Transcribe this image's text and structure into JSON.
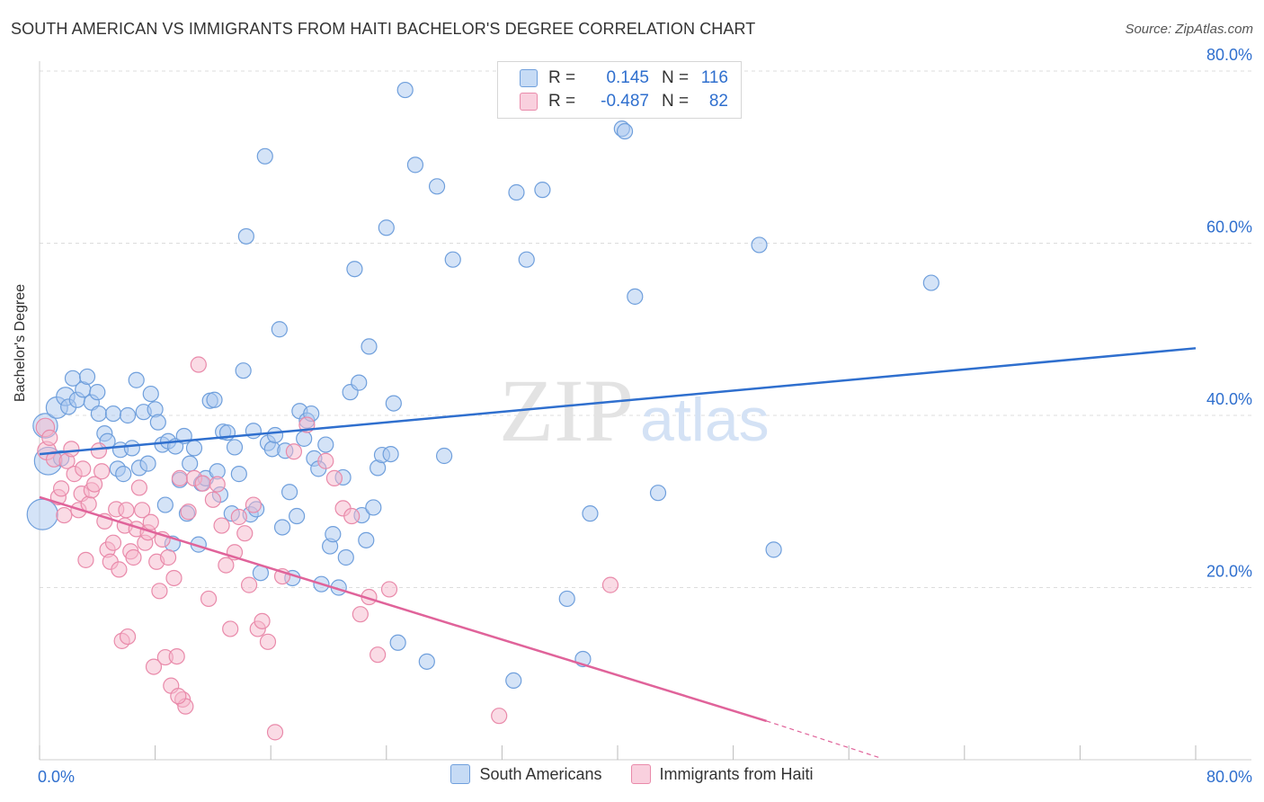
{
  "header": {
    "title": "SOUTH AMERICAN VS IMMIGRANTS FROM HAITI BACHELOR'S DEGREE CORRELATION CHART",
    "source": "Source: ZipAtlas.com"
  },
  "watermark": {
    "zip": "ZIP",
    "atlas": "atlas"
  },
  "legend_top": {
    "rows": [
      {
        "r_label": "R =",
        "r_value": "0.145",
        "n_label": "N =",
        "n_value": "116"
      },
      {
        "r_label": "R =",
        "r_value": "-0.487",
        "n_label": "N =",
        "n_value": "82"
      }
    ]
  },
  "legend_bottom": {
    "items": [
      {
        "label": "South Americans"
      },
      {
        "label": "Immigrants from Haiti"
      }
    ]
  },
  "colors": {
    "blue_fill": "#a9c8f0",
    "blue_stroke": "#6f9fdc",
    "blue_line": "#2f6fce",
    "pink_fill": "#f5b8cc",
    "pink_stroke": "#e98aaa",
    "pink_line": "#e0639a",
    "axis_label": "#2f6fce",
    "grid": "#dcdcdc"
  },
  "chart_data": {
    "type": "scatter",
    "title": "SOUTH AMERICAN VS IMMIGRANTS FROM HAITI BACHELOR'S DEGREE CORRELATION CHART",
    "xlabel": "",
    "ylabel": "Bachelor's Degree",
    "xlim": [
      0,
      80
    ],
    "ylim": [
      0,
      80
    ],
    "x_tick_labels": [
      "0.0%",
      "80.0%"
    ],
    "y_tick_labels": [
      "20.0%",
      "40.0%",
      "60.0%",
      "80.0%"
    ],
    "y_ticks": [
      20,
      40,
      60,
      80
    ],
    "grid": true,
    "legend": "bottom",
    "series": [
      {
        "name": "South Americans",
        "r": 0.145,
        "n": 116,
        "trend": {
          "x": [
            0,
            80
          ],
          "y": [
            35.5,
            47.8
          ]
        },
        "points": [
          [
            0.4,
            38.8,
            1.6
          ],
          [
            0.6,
            34.7,
            1.8
          ],
          [
            0.2,
            28.5,
            2.0
          ],
          [
            1.2,
            40.9,
            1.4
          ],
          [
            1.5,
            35.0,
            1.0
          ],
          [
            1.8,
            42.2,
            1.2
          ],
          [
            2.0,
            41.0,
            1.0
          ],
          [
            2.3,
            44.3,
            1.0
          ],
          [
            2.6,
            41.8,
            1.0
          ],
          [
            3.0,
            43.0,
            1.0
          ],
          [
            3.3,
            44.5,
            1.0
          ],
          [
            3.6,
            41.5,
            1.0
          ],
          [
            4.0,
            42.7,
            1.0
          ],
          [
            4.1,
            40.2,
            1.0
          ],
          [
            4.5,
            37.9,
            1.0
          ],
          [
            4.7,
            37.0,
            1.0
          ],
          [
            5.1,
            40.2,
            1.0
          ],
          [
            5.4,
            33.8,
            1.0
          ],
          [
            5.6,
            36.0,
            1.0
          ],
          [
            5.8,
            33.2,
            1.0
          ],
          [
            6.1,
            40.0,
            1.0
          ],
          [
            6.4,
            36.2,
            1.0
          ],
          [
            6.7,
            44.1,
            1.0
          ],
          [
            6.9,
            33.9,
            1.0
          ],
          [
            7.2,
            40.4,
            1.0
          ],
          [
            7.5,
            34.4,
            1.0
          ],
          [
            7.7,
            42.5,
            1.0
          ],
          [
            8.0,
            40.7,
            1.0
          ],
          [
            8.2,
            39.2,
            1.0
          ],
          [
            8.5,
            36.6,
            1.0
          ],
          [
            8.7,
            29.6,
            1.0
          ],
          [
            8.9,
            37.0,
            1.0
          ],
          [
            9.2,
            25.1,
            1.0
          ],
          [
            9.4,
            36.4,
            1.0
          ],
          [
            9.7,
            32.5,
            1.0
          ],
          [
            10.0,
            37.6,
            1.0
          ],
          [
            10.2,
            28.6,
            1.0
          ],
          [
            10.4,
            34.4,
            1.0
          ],
          [
            10.7,
            36.2,
            1.0
          ],
          [
            11.0,
            25.0,
            1.0
          ],
          [
            11.2,
            32.1,
            1.0
          ],
          [
            11.5,
            32.7,
            1.0
          ],
          [
            11.8,
            41.7,
            1.0
          ],
          [
            12.1,
            41.8,
            1.0
          ],
          [
            12.3,
            33.5,
            1.0
          ],
          [
            12.5,
            30.8,
            1.0
          ],
          [
            12.7,
            38.1,
            1.0
          ],
          [
            13.0,
            38.0,
            1.0
          ],
          [
            13.3,
            28.6,
            1.0
          ],
          [
            13.5,
            36.3,
            1.0
          ],
          [
            13.8,
            33.2,
            1.0
          ],
          [
            14.1,
            45.2,
            1.0
          ],
          [
            14.3,
            60.8,
            1.0
          ],
          [
            14.6,
            28.5,
            1.0
          ],
          [
            14.8,
            38.2,
            1.0
          ],
          [
            15.0,
            29.1,
            1.0
          ],
          [
            15.3,
            21.7,
            1.0
          ],
          [
            15.6,
            70.1,
            1.0
          ],
          [
            15.8,
            36.8,
            1.0
          ],
          [
            16.1,
            36.1,
            1.0
          ],
          [
            16.3,
            37.7,
            1.0
          ],
          [
            16.6,
            50.0,
            1.0
          ],
          [
            16.8,
            27.0,
            1.0
          ],
          [
            17.0,
            35.9,
            1.0
          ],
          [
            17.3,
            31.1,
            1.0
          ],
          [
            17.5,
            21.1,
            1.0
          ],
          [
            17.8,
            28.3,
            1.0
          ],
          [
            18.0,
            40.5,
            1.0
          ],
          [
            18.3,
            37.3,
            1.0
          ],
          [
            18.5,
            39.4,
            1.0
          ],
          [
            18.8,
            40.2,
            1.0
          ],
          [
            19.0,
            35.0,
            1.0
          ],
          [
            19.3,
            33.8,
            1.0
          ],
          [
            19.5,
            20.4,
            1.0
          ],
          [
            19.8,
            36.6,
            1.0
          ],
          [
            20.1,
            24.8,
            1.0
          ],
          [
            20.3,
            26.2,
            1.0
          ],
          [
            20.7,
            20.0,
            1.0
          ],
          [
            21.0,
            32.8,
            1.0
          ],
          [
            21.2,
            23.5,
            1.0
          ],
          [
            21.5,
            42.7,
            1.0
          ],
          [
            21.8,
            57.0,
            1.0
          ],
          [
            22.1,
            43.8,
            1.0
          ],
          [
            22.3,
            28.4,
            1.0
          ],
          [
            22.6,
            25.5,
            1.0
          ],
          [
            22.8,
            48.0,
            1.0
          ],
          [
            23.1,
            29.3,
            1.0
          ],
          [
            23.4,
            33.9,
            1.0
          ],
          [
            23.7,
            35.4,
            1.0
          ],
          [
            24.0,
            61.8,
            1.0
          ],
          [
            24.3,
            35.5,
            1.0
          ],
          [
            24.5,
            41.4,
            1.0
          ],
          [
            24.8,
            13.6,
            1.0
          ],
          [
            25.3,
            77.8,
            1.0
          ],
          [
            26.0,
            69.1,
            1.0
          ],
          [
            26.8,
            11.4,
            1.0
          ],
          [
            27.5,
            66.6,
            1.0
          ],
          [
            28.0,
            35.3,
            1.0
          ],
          [
            28.6,
            58.1,
            1.0
          ],
          [
            32.8,
            9.2,
            1.0
          ],
          [
            33.0,
            65.9,
            1.0
          ],
          [
            33.7,
            58.1,
            1.0
          ],
          [
            34.8,
            66.2,
            1.0
          ],
          [
            36.5,
            18.7,
            1.0
          ],
          [
            37.6,
            11.7,
            1.0
          ],
          [
            38.1,
            28.6,
            1.0
          ],
          [
            40.3,
            73.3,
            1.0
          ],
          [
            40.5,
            73.0,
            1.0
          ],
          [
            41.2,
            53.8,
            1.0
          ],
          [
            42.8,
            31.0,
            1.0
          ],
          [
            49.8,
            59.8,
            1.0
          ],
          [
            50.8,
            24.4,
            1.0
          ],
          [
            61.7,
            55.4,
            1.0
          ]
        ]
      },
      {
        "name": "Immigrants from Haiti",
        "r": -0.487,
        "n": 82,
        "trend": {
          "x": [
            0,
            50.3
          ],
          "y": [
            30.5,
            4.5
          ]
        },
        "trend_dashed": {
          "x": [
            50.3,
            58.2
          ],
          "y": [
            4.5,
            0.2
          ]
        },
        "points": [
          [
            0.4,
            38.6,
            1.2
          ],
          [
            0.5,
            35.9,
            1.2
          ],
          [
            0.7,
            37.4,
            1.0
          ],
          [
            1.0,
            34.9,
            1.0
          ],
          [
            1.3,
            30.5,
            1.0
          ],
          [
            1.5,
            31.5,
            1.0
          ],
          [
            1.7,
            28.4,
            1.0
          ],
          [
            1.9,
            34.7,
            1.0
          ],
          [
            2.2,
            36.1,
            1.0
          ],
          [
            2.4,
            33.2,
            1.0
          ],
          [
            2.7,
            29.0,
            1.0
          ],
          [
            2.9,
            30.9,
            1.0
          ],
          [
            3.2,
            23.2,
            1.0
          ],
          [
            3.4,
            29.7,
            1.0
          ],
          [
            3.6,
            31.3,
            1.0
          ],
          [
            3.8,
            32.0,
            1.0
          ],
          [
            4.1,
            35.9,
            1.0
          ],
          [
            4.3,
            33.5,
            1.0
          ],
          [
            4.5,
            27.7,
            1.0
          ],
          [
            4.7,
            24.4,
            1.0
          ],
          [
            4.9,
            23.0,
            1.0
          ],
          [
            5.1,
            25.2,
            1.0
          ],
          [
            5.3,
            29.1,
            1.0
          ],
          [
            5.5,
            22.1,
            1.0
          ],
          [
            5.7,
            13.8,
            1.0
          ],
          [
            5.9,
            27.2,
            1.0
          ],
          [
            6.1,
            14.3,
            1.0
          ],
          [
            6.3,
            24.2,
            1.0
          ],
          [
            6.5,
            23.5,
            1.0
          ],
          [
            6.7,
            26.8,
            1.0
          ],
          [
            6.9,
            31.6,
            1.0
          ],
          [
            7.1,
            29.0,
            1.0
          ],
          [
            7.3,
            25.2,
            1.0
          ],
          [
            7.5,
            26.4,
            1.0
          ],
          [
            7.7,
            27.6,
            1.0
          ],
          [
            7.9,
            10.8,
            1.0
          ],
          [
            8.1,
            23.0,
            1.0
          ],
          [
            8.3,
            19.6,
            1.0
          ],
          [
            8.5,
            25.6,
            1.0
          ],
          [
            8.7,
            11.9,
            1.0
          ],
          [
            8.9,
            23.5,
            1.0
          ],
          [
            9.1,
            8.6,
            1.0
          ],
          [
            9.3,
            21.1,
            1.0
          ],
          [
            9.5,
            12.0,
            1.0
          ],
          [
            9.7,
            32.7,
            1.0
          ],
          [
            9.9,
            7.0,
            1.0
          ],
          [
            10.1,
            6.2,
            1.0
          ],
          [
            10.3,
            28.8,
            1.0
          ],
          [
            10.7,
            32.7,
            1.0
          ],
          [
            11.0,
            45.9,
            1.0
          ],
          [
            11.3,
            32.1,
            1.0
          ],
          [
            11.7,
            18.7,
            1.0
          ],
          [
            12.0,
            30.2,
            1.0
          ],
          [
            12.3,
            32.0,
            1.0
          ],
          [
            12.6,
            27.2,
            1.0
          ],
          [
            12.9,
            22.6,
            1.0
          ],
          [
            13.2,
            15.2,
            1.0
          ],
          [
            13.5,
            24.1,
            1.0
          ],
          [
            13.8,
            28.2,
            1.0
          ],
          [
            14.2,
            26.3,
            1.0
          ],
          [
            14.5,
            20.3,
            1.0
          ],
          [
            14.8,
            29.6,
            1.0
          ],
          [
            15.1,
            15.2,
            1.0
          ],
          [
            15.4,
            16.1,
            1.0
          ],
          [
            15.8,
            13.7,
            1.0
          ],
          [
            16.3,
            3.2,
            1.0
          ],
          [
            16.8,
            21.3,
            1.0
          ],
          [
            17.6,
            35.8,
            1.0
          ],
          [
            18.5,
            38.9,
            1.0
          ],
          [
            19.8,
            34.7,
            1.0
          ],
          [
            20.4,
            32.7,
            1.0
          ],
          [
            21.0,
            29.2,
            1.0
          ],
          [
            21.6,
            28.3,
            1.0
          ],
          [
            22.2,
            16.9,
            1.0
          ],
          [
            22.8,
            18.9,
            1.0
          ],
          [
            23.4,
            12.2,
            1.0
          ],
          [
            24.2,
            19.8,
            1.0
          ],
          [
            31.8,
            5.1,
            1.0
          ],
          [
            39.5,
            20.3,
            1.0
          ],
          [
            9.6,
            7.4,
            1.0
          ],
          [
            6.0,
            29.0,
            1.0
          ],
          [
            3.0,
            33.8,
            1.0
          ]
        ]
      }
    ]
  }
}
